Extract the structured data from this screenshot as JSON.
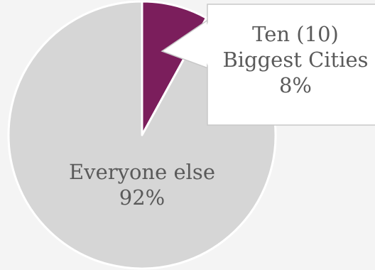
{
  "chart_data": {
    "type": "pie",
    "slices": [
      {
        "label": "Ten (10) Biggest Cities",
        "label_lines": [
          "Ten (10)",
          "Biggest Cities"
        ],
        "value": 8,
        "value_text": "8%",
        "color": "#7b1e5c"
      },
      {
        "label": "Everyone else",
        "label_lines": [
          "Everyone else"
        ],
        "value": 92,
        "value_text": "92%",
        "color": "#d6d6d6"
      }
    ]
  }
}
